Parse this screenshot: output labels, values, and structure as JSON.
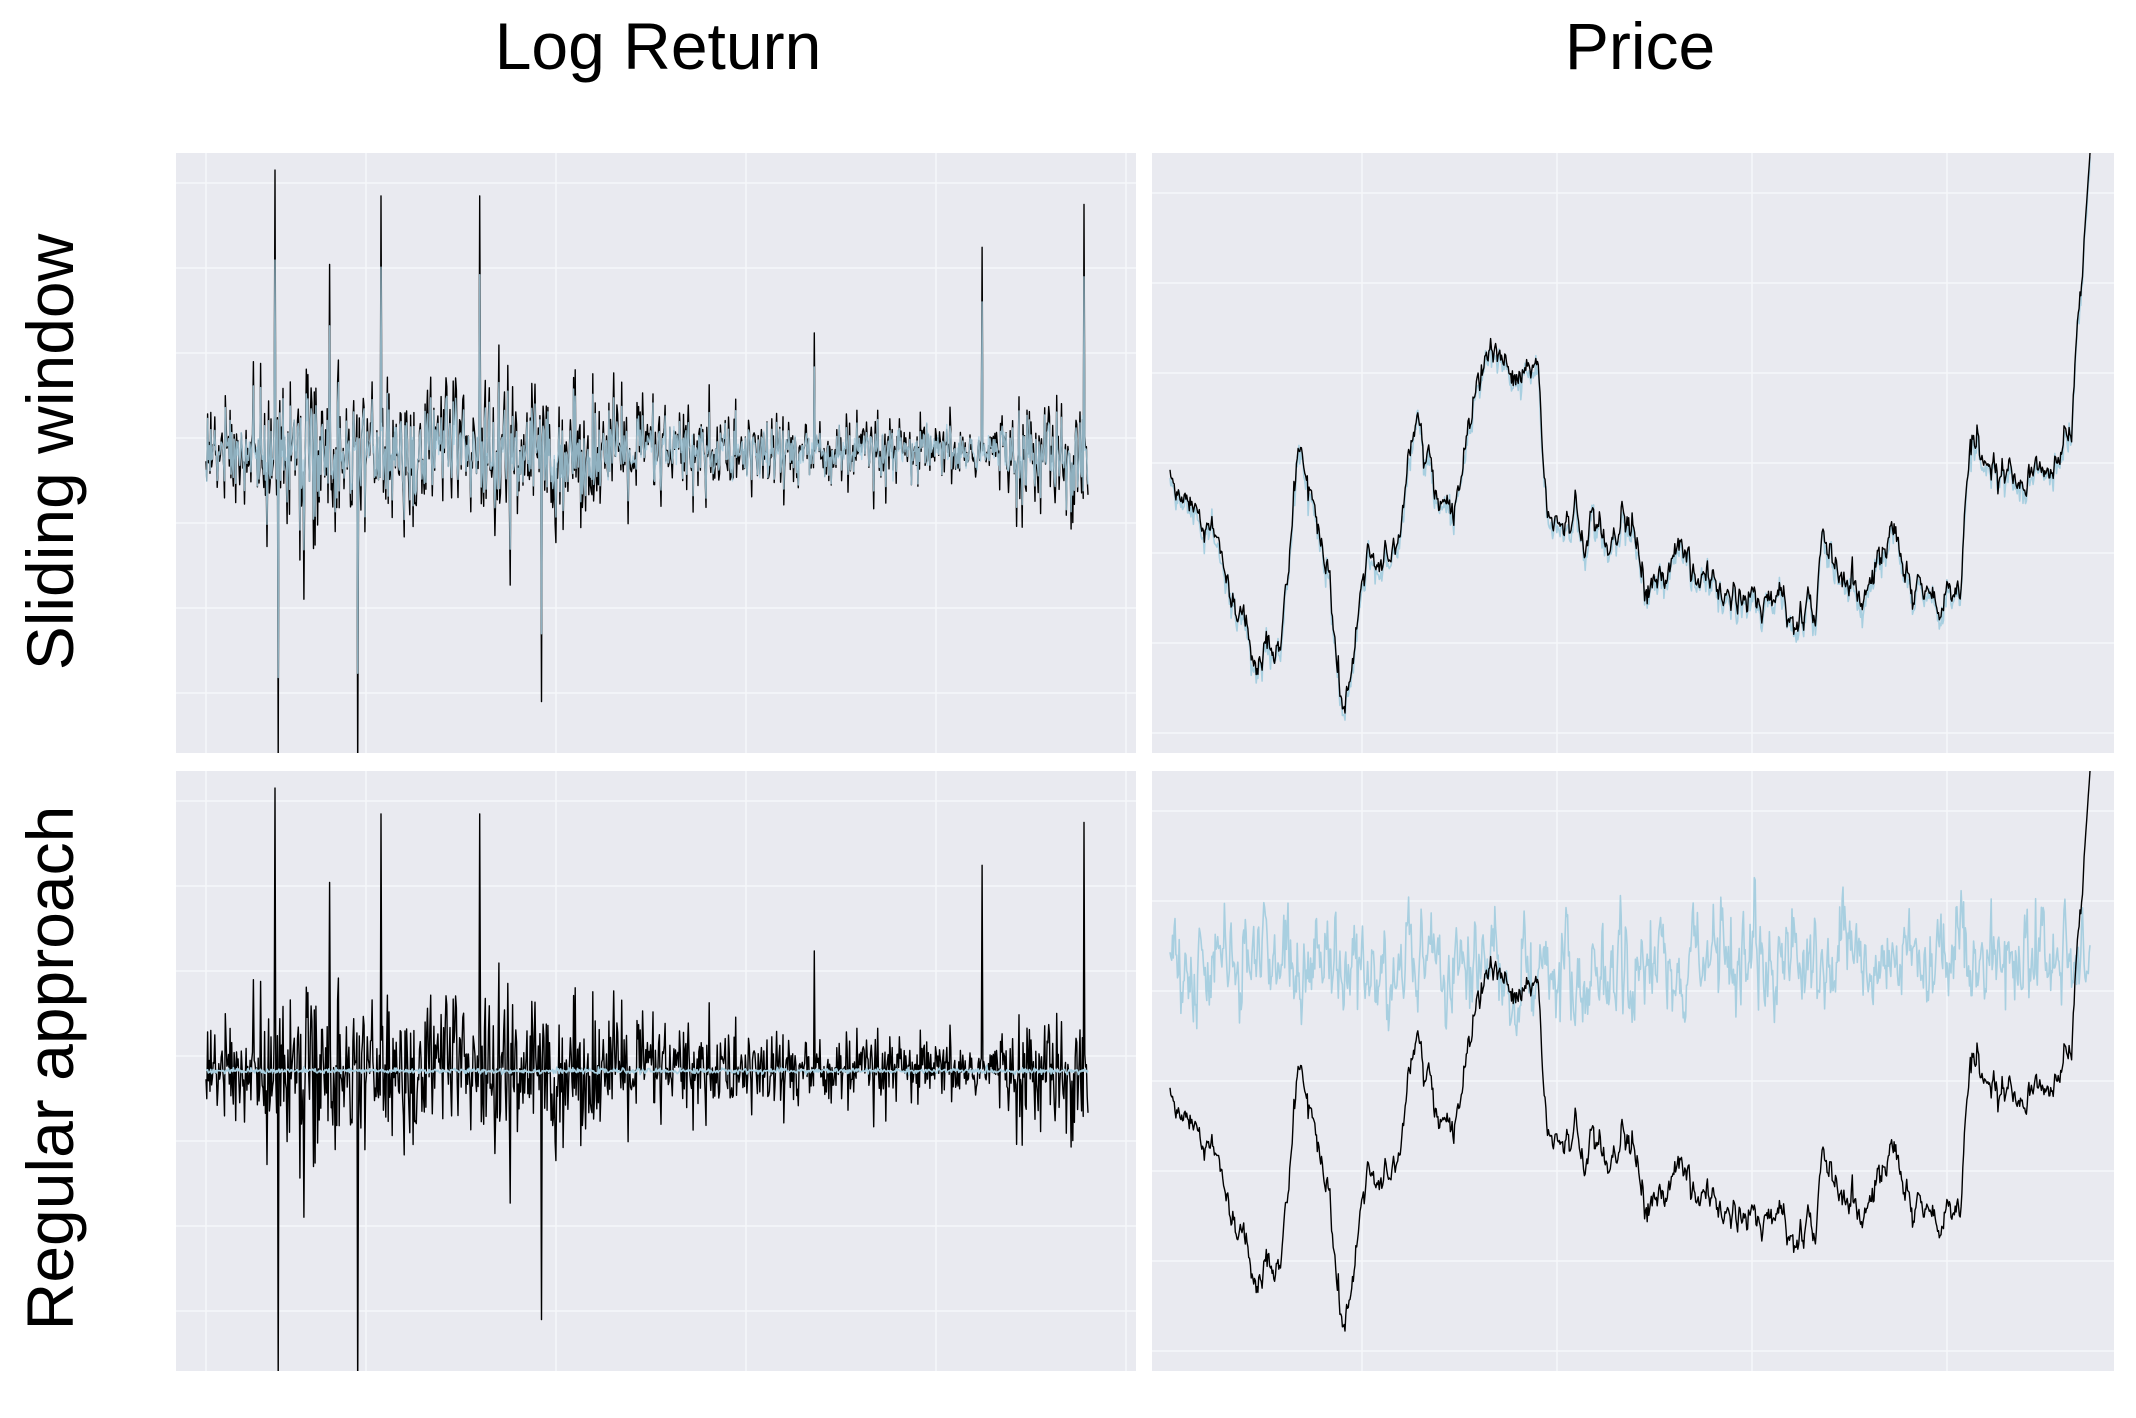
{
  "figure": {
    "col_titles": [
      "Log Return",
      "Price"
    ],
    "row_titles": [
      "Sliding window",
      "Regular approach"
    ]
  },
  "colors": {
    "background": "#e9eaf0",
    "grid": "#f6f7fa",
    "series_black": "#000000",
    "series_light_blue": "#a8cfe0"
  },
  "chart_data": [
    {
      "type": "line",
      "panel": "Sliding window / Log Return",
      "grid": true,
      "ticks_labeled": false,
      "ylim": [
        -0.35,
        0.35
      ],
      "n_points": 1100,
      "series": [
        {
          "role": "actual",
          "color": "#000000",
          "description_values": {
            "volatility_profile": [
              [
                0,
                1.0
              ],
              [
                0.15,
                1.6
              ],
              [
                0.35,
                1.5
              ],
              [
                0.6,
                0.9
              ],
              [
                0.85,
                0.6
              ],
              [
                1.0,
                1.3
              ]
            ],
            "spikes": [
              [
                0.078,
                0.33
              ],
              [
                0.082,
                -0.36
              ],
              [
                0.14,
                0.22
              ],
              [
                0.172,
                -0.38
              ],
              [
                0.198,
                0.3
              ],
              [
                0.31,
                0.3
              ],
              [
                0.38,
                -0.29
              ],
              [
                0.69,
                0.14
              ],
              [
                0.88,
                0.24
              ],
              [
                0.995,
                0.29
              ]
            ]
          }
        },
        {
          "role": "predicted",
          "color": "#a8cfe0",
          "note": "closely tracks actual"
        }
      ]
    },
    {
      "type": "line",
      "panel": "Sliding window / Price",
      "grid": true,
      "ticks_labeled": false,
      "n_points": 1100,
      "price_path_shape": [
        [
          0.0,
          0.52
        ],
        [
          0.03,
          0.6
        ],
        [
          0.07,
          0.74
        ],
        [
          0.1,
          0.9
        ],
        [
          0.12,
          0.82
        ],
        [
          0.14,
          0.5
        ],
        [
          0.17,
          0.68
        ],
        [
          0.19,
          0.98
        ],
        [
          0.21,
          0.7
        ],
        [
          0.24,
          0.68
        ],
        [
          0.27,
          0.48
        ],
        [
          0.3,
          0.6
        ],
        [
          0.33,
          0.46
        ],
        [
          0.35,
          0.32
        ],
        [
          0.37,
          0.35
        ],
        [
          0.4,
          0.34
        ],
        [
          0.41,
          0.6
        ],
        [
          0.43,
          0.62
        ],
        [
          0.46,
          0.64
        ],
        [
          0.49,
          0.62
        ],
        [
          0.52,
          0.72
        ],
        [
          0.55,
          0.68
        ],
        [
          0.58,
          0.7
        ],
        [
          0.62,
          0.76
        ],
        [
          0.65,
          0.73
        ],
        [
          0.68,
          0.76
        ],
        [
          0.7,
          0.74
        ],
        [
          0.71,
          0.64
        ],
        [
          0.72,
          0.68
        ],
        [
          0.76,
          0.7
        ],
        [
          0.79,
          0.66
        ],
        [
          0.82,
          0.72
        ],
        [
          0.84,
          0.74
        ],
        [
          0.86,
          0.72
        ],
        [
          0.87,
          0.48
        ],
        [
          0.89,
          0.49
        ],
        [
          0.93,
          0.52
        ],
        [
          0.96,
          0.54
        ],
        [
          0.98,
          0.45
        ],
        [
          1.0,
          0.0
        ]
      ],
      "series": [
        {
          "role": "actual",
          "color": "#000000"
        },
        {
          "role": "predicted",
          "color": "#a8cfe0",
          "note": "closely tracks actual"
        }
      ]
    },
    {
      "type": "line",
      "panel": "Regular approach / Log Return",
      "grid": true,
      "ticks_labeled": false,
      "ylim": [
        -0.35,
        0.35
      ],
      "n_points": 1100,
      "series": [
        {
          "role": "actual",
          "color": "#000000"
        },
        {
          "role": "predicted",
          "color": "#a8cfe0",
          "note": "nearly flat around zero"
        }
      ]
    },
    {
      "type": "line",
      "panel": "Regular approach / Price",
      "grid": true,
      "ticks_labeled": false,
      "n_points": 1100,
      "series": [
        {
          "role": "actual",
          "color": "#000000",
          "note": "same price path as sliding window panel"
        },
        {
          "role": "predicted",
          "color": "#a8cfe0",
          "note": "noisy oscillation around a constant level"
        }
      ]
    }
  ]
}
